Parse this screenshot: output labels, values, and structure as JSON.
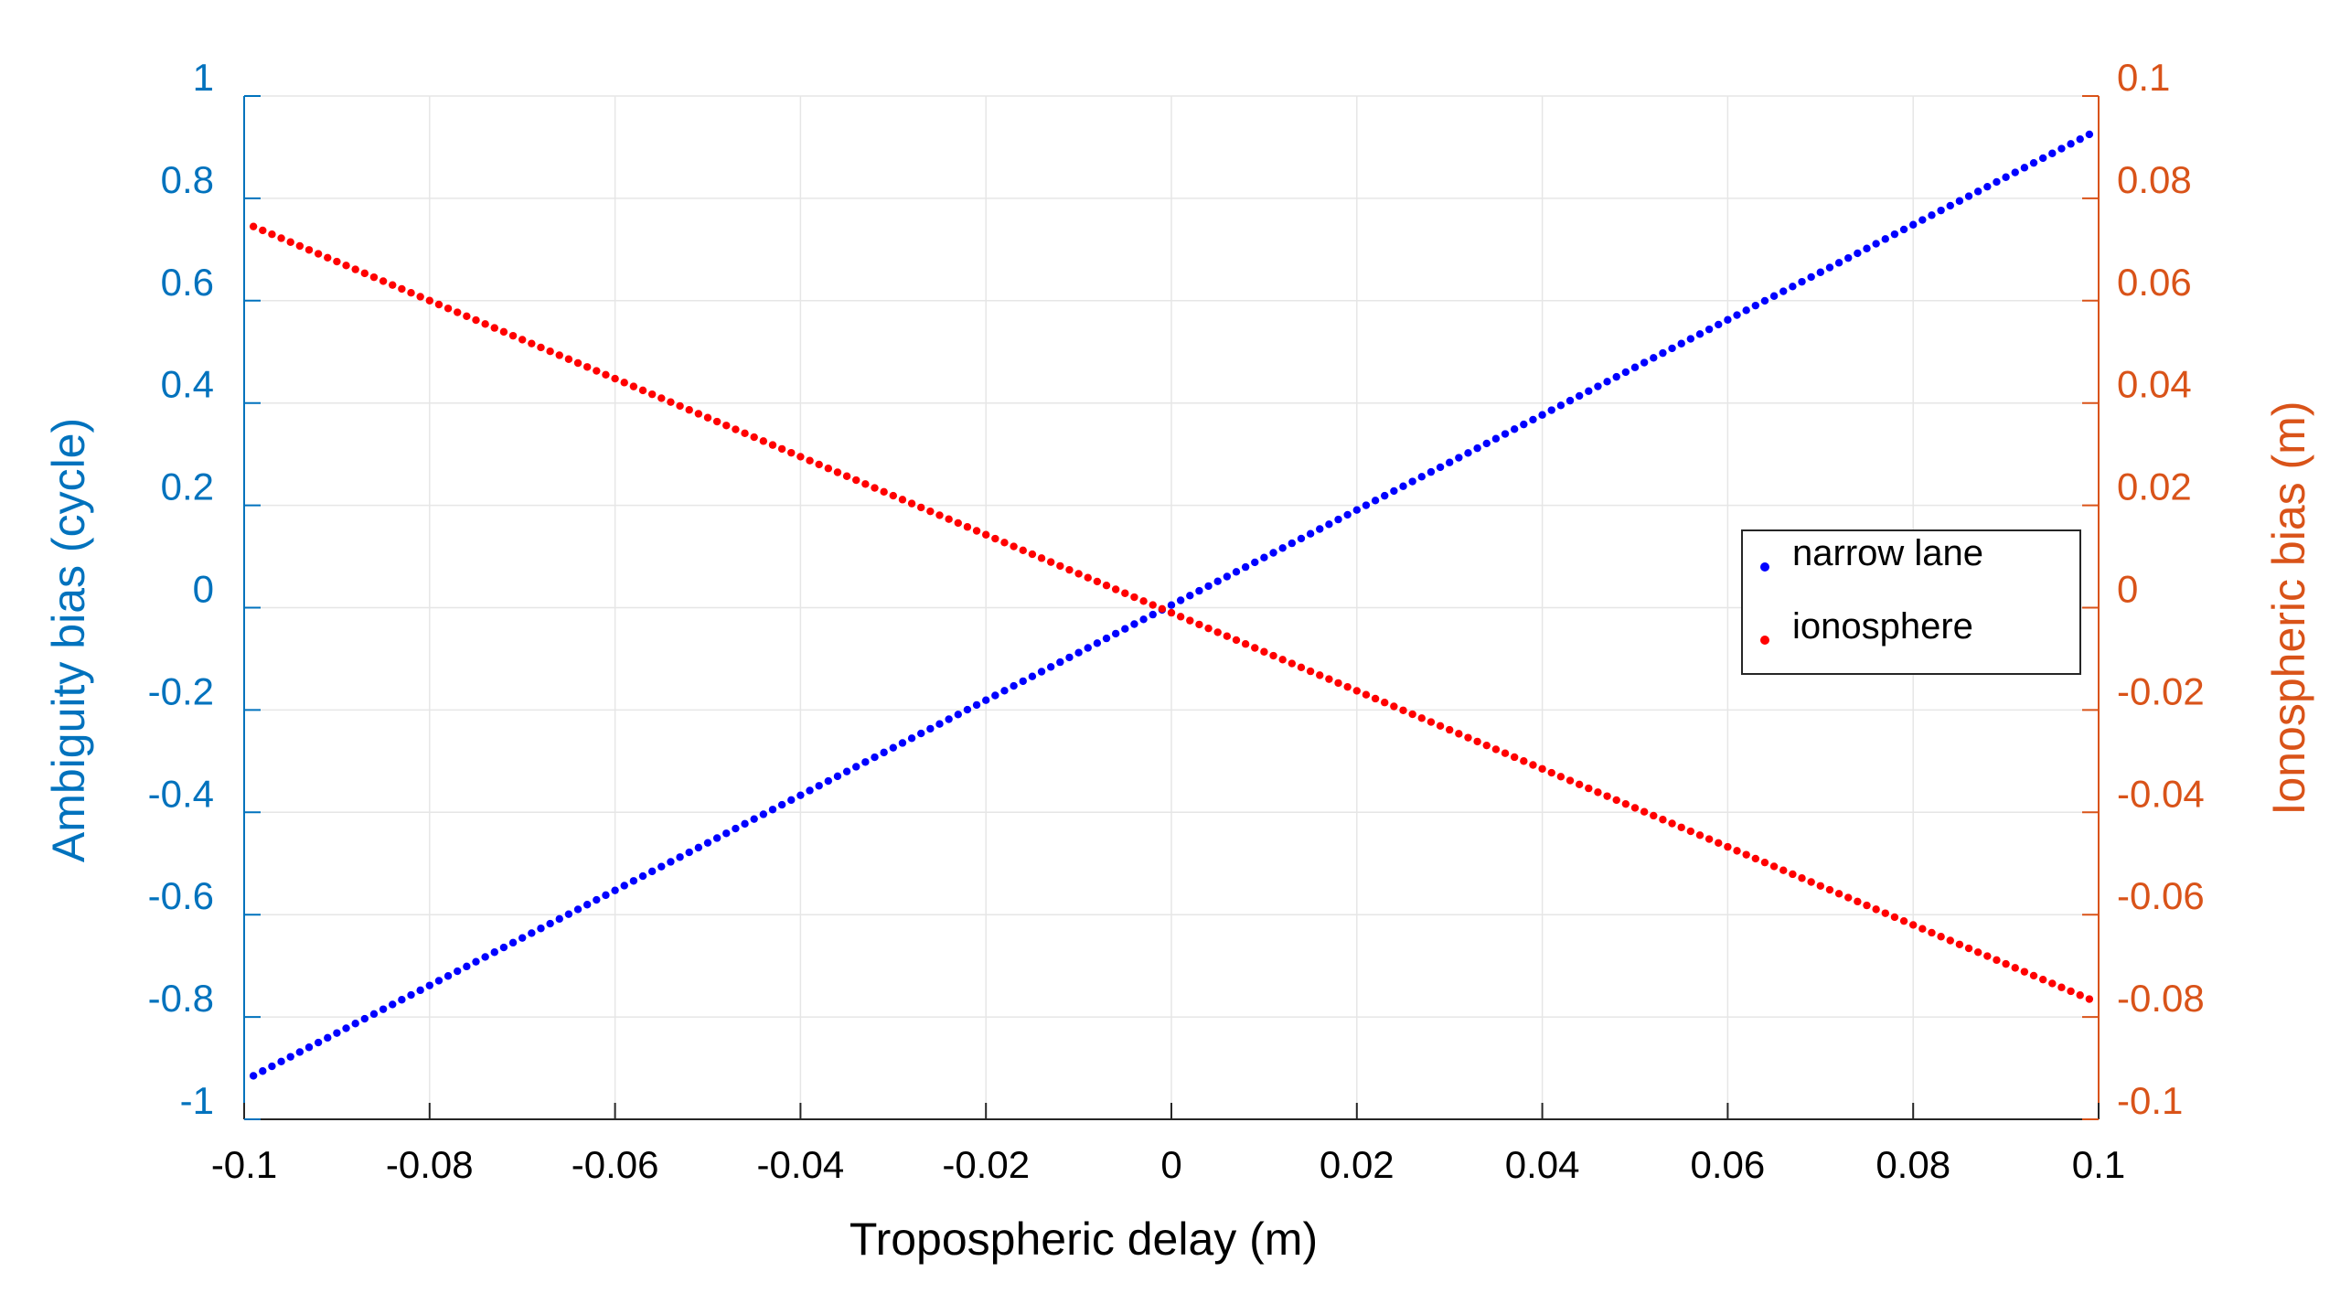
{
  "chart_data": {
    "type": "scatter",
    "title": "",
    "xlabel": "Tropospheric delay (m)",
    "ylabel_left": "Ambiguity bias (cycle)",
    "ylabel_right": "Ionospheric bias (m)",
    "xlim": [
      -0.1,
      0.1
    ],
    "ylim_left": [
      -1,
      1
    ],
    "ylim_right": [
      -0.1,
      0.1
    ],
    "x_ticks": [
      "-0.1",
      "-0.08",
      "-0.06",
      "-0.04",
      "-0.02",
      "0",
      "0.02",
      "0.04",
      "0.06",
      "0.08",
      "0.1"
    ],
    "y_left_ticks": [
      "-1",
      "-0.8",
      "-0.6",
      "-0.4",
      "-0.2",
      "0",
      "0.2",
      "0.4",
      "0.6",
      "0.8",
      "1"
    ],
    "y_right_ticks": [
      "-0.1",
      "-0.08",
      "-0.06",
      "-0.04",
      "-0.02",
      "0",
      "0.02",
      "0.04",
      "0.06",
      "0.08",
      "0.1"
    ],
    "grid": true,
    "legend_position": "right-center",
    "colors": {
      "left_axis": "#0072BD",
      "right_axis": "#D95319",
      "narrow_lane": "#0000FF",
      "ionosphere": "#FF0000",
      "grid": "#E6E6E6"
    },
    "series": [
      {
        "name": "narrow lane",
        "axis": "left",
        "x_start": -0.099,
        "x_end": 0.099,
        "x_step": 0.001,
        "y_start": -0.915,
        "y_end": 0.925
      },
      {
        "name": "ionosphere",
        "axis": "right",
        "x_start": -0.099,
        "x_end": 0.099,
        "x_step": 0.001,
        "y_start": 0.0745,
        "y_end": -0.0765
      }
    ]
  }
}
